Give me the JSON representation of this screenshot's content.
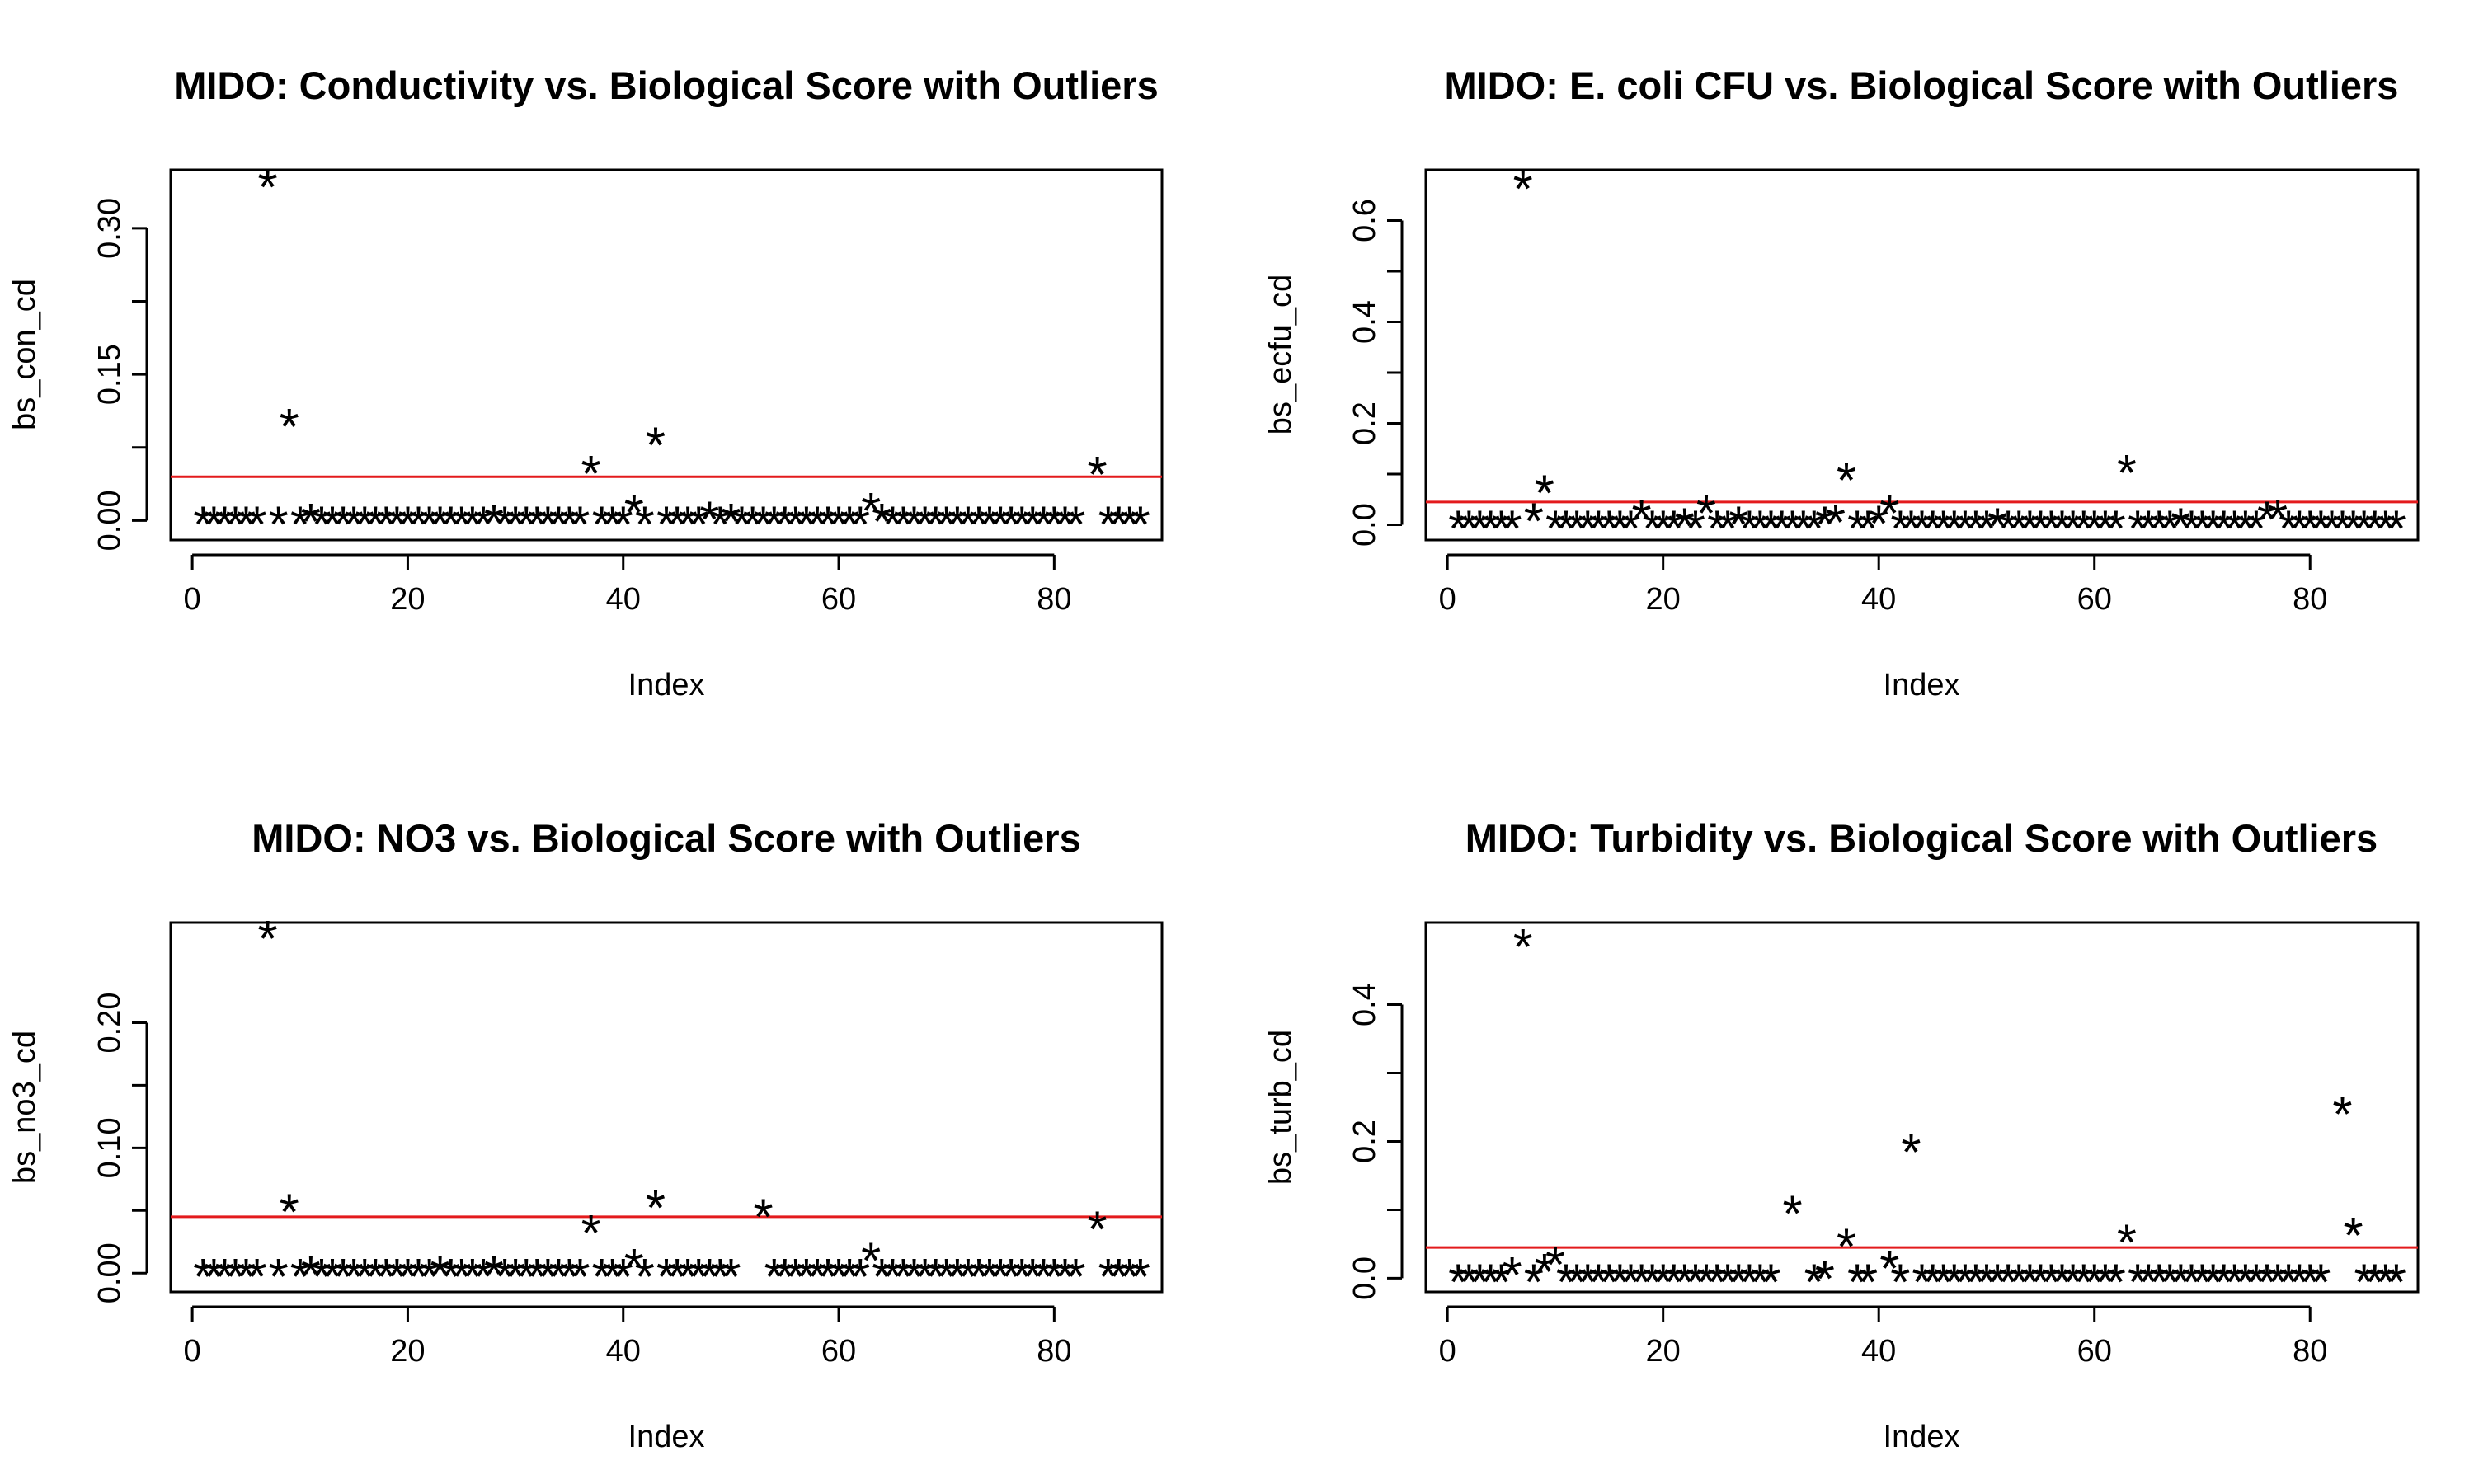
{
  "reference_line_color": "#e31a1c",
  "point_symbol": "*",
  "chart_data": [
    {
      "type": "scatter",
      "title": "MIDO: Conductivity vs. Biological Score with Outliers",
      "xlabel": "Index",
      "ylabel": "bs_con_cd",
      "xlim": [
        -2,
        90
      ],
      "ylim": [
        -0.02,
        0.36
      ],
      "xticks": [
        0,
        20,
        40,
        60,
        80
      ],
      "xtick_labels": [
        "0",
        "20",
        "40",
        "60",
        "80"
      ],
      "yticks": [
        0.0,
        0.15,
        0.3
      ],
      "ytick_labels": [
        "0.00",
        "0.15",
        "0.30"
      ],
      "reference_line": 0.045,
      "points": [
        [
          1,
          0.0
        ],
        [
          2,
          0.0
        ],
        [
          3,
          0.0
        ],
        [
          4,
          0.0
        ],
        [
          5,
          0.0
        ],
        [
          6,
          0.0
        ],
        [
          7,
          0.346
        ],
        [
          8,
          0.0
        ],
        [
          9,
          0.1
        ],
        [
          10,
          0.0
        ],
        [
          11,
          0.003
        ],
        [
          12,
          0.0
        ],
        [
          13,
          0.0
        ],
        [
          14,
          0.0
        ],
        [
          15,
          0.0
        ],
        [
          16,
          0.0
        ],
        [
          17,
          0.0
        ],
        [
          18,
          0.0
        ],
        [
          19,
          0.0
        ],
        [
          20,
          0.0
        ],
        [
          21,
          0.0
        ],
        [
          22,
          0.0
        ],
        [
          23,
          0.0
        ],
        [
          24,
          0.0
        ],
        [
          25,
          0.0
        ],
        [
          26,
          0.0
        ],
        [
          27,
          0.0
        ],
        [
          28,
          0.002
        ],
        [
          29,
          0.0
        ],
        [
          30,
          0.0
        ],
        [
          31,
          0.0
        ],
        [
          32,
          0.0
        ],
        [
          33,
          0.0
        ],
        [
          34,
          0.0
        ],
        [
          35,
          0.0
        ],
        [
          36,
          0.0
        ],
        [
          37,
          0.052
        ],
        [
          38,
          0.0
        ],
        [
          39,
          0.0
        ],
        [
          40,
          0.0
        ],
        [
          41,
          0.012
        ],
        [
          42,
          0.0
        ],
        [
          43,
          0.081
        ],
        [
          44,
          0.0
        ],
        [
          45,
          0.0
        ],
        [
          46,
          0.0
        ],
        [
          47,
          0.0
        ],
        [
          48,
          0.005
        ],
        [
          49,
          0.0
        ],
        [
          50,
          0.003
        ],
        [
          51,
          0.0
        ],
        [
          52,
          0.0
        ],
        [
          53,
          0.0
        ],
        [
          54,
          0.0
        ],
        [
          55,
          0.0
        ],
        [
          56,
          0.0
        ],
        [
          57,
          0.0
        ],
        [
          58,
          0.0
        ],
        [
          59,
          0.0
        ],
        [
          60,
          0.0
        ],
        [
          61,
          0.0
        ],
        [
          62,
          0.0
        ],
        [
          63,
          0.014
        ],
        [
          64,
          0.003
        ],
        [
          65,
          0.0
        ],
        [
          66,
          0.0
        ],
        [
          67,
          0.0
        ],
        [
          68,
          0.0
        ],
        [
          69,
          0.0
        ],
        [
          70,
          0.0
        ],
        [
          71,
          0.0
        ],
        [
          72,
          0.0
        ],
        [
          73,
          0.0
        ],
        [
          74,
          0.0
        ],
        [
          75,
          0.0
        ],
        [
          76,
          0.0
        ],
        [
          77,
          0.0
        ],
        [
          78,
          0.0
        ],
        [
          79,
          0.0
        ],
        [
          80,
          0.0
        ],
        [
          81,
          0.0
        ],
        [
          82,
          0.0
        ],
        [
          84,
          0.051
        ],
        [
          85,
          0.0
        ],
        [
          86,
          0.0
        ],
        [
          87,
          0.0
        ],
        [
          88,
          0.0
        ]
      ]
    },
    {
      "type": "scatter",
      "title": "MIDO: E. coli CFU vs. Biological Score with Outliers",
      "xlabel": "Index",
      "ylabel": "bs_ecfu_cd",
      "xlim": [
        -2,
        90
      ],
      "ylim": [
        -0.03,
        0.7
      ],
      "xticks": [
        0,
        20,
        40,
        60,
        80
      ],
      "xtick_labels": [
        "0",
        "20",
        "40",
        "60",
        "80"
      ],
      "yticks": [
        0.0,
        0.2,
        0.4,
        0.6
      ],
      "ytick_labels": [
        "0.0",
        "0.2",
        "0.4",
        "0.6"
      ],
      "reference_line": 0.045,
      "points": [
        [
          1,
          0.0
        ],
        [
          2,
          0.0
        ],
        [
          3,
          0.0
        ],
        [
          4,
          0.0
        ],
        [
          5,
          0.0
        ],
        [
          6,
          0.0
        ],
        [
          7,
          0.67
        ],
        [
          8,
          0.015
        ],
        [
          9,
          0.07
        ],
        [
          10,
          0.0
        ],
        [
          11,
          0.0
        ],
        [
          12,
          0.0
        ],
        [
          13,
          0.0
        ],
        [
          14,
          0.0
        ],
        [
          15,
          0.0
        ],
        [
          16,
          0.0
        ],
        [
          17,
          0.0
        ],
        [
          18,
          0.02
        ],
        [
          19,
          0.0
        ],
        [
          20,
          0.0
        ],
        [
          21,
          0.0
        ],
        [
          22,
          0.005
        ],
        [
          23,
          0.0
        ],
        [
          24,
          0.03
        ],
        [
          25,
          0.0
        ],
        [
          26,
          0.0
        ],
        [
          27,
          0.008
        ],
        [
          28,
          0.0
        ],
        [
          29,
          0.0
        ],
        [
          30,
          0.0
        ],
        [
          31,
          0.0
        ],
        [
          32,
          0.0
        ],
        [
          33,
          0.0
        ],
        [
          34,
          0.0
        ],
        [
          35,
          0.008
        ],
        [
          36,
          0.012
        ],
        [
          37,
          0.095
        ],
        [
          38,
          0.0
        ],
        [
          39,
          0.0
        ],
        [
          40,
          0.01
        ],
        [
          41,
          0.03
        ],
        [
          42,
          0.0
        ],
        [
          43,
          0.0
        ],
        [
          44,
          0.0
        ],
        [
          45,
          0.0
        ],
        [
          46,
          0.0
        ],
        [
          47,
          0.0
        ],
        [
          48,
          0.0
        ],
        [
          49,
          0.0
        ],
        [
          50,
          0.0
        ],
        [
          51,
          0.005
        ],
        [
          52,
          0.0
        ],
        [
          53,
          0.0
        ],
        [
          54,
          0.0
        ],
        [
          55,
          0.0
        ],
        [
          56,
          0.0
        ],
        [
          57,
          0.0
        ],
        [
          58,
          0.0
        ],
        [
          59,
          0.0
        ],
        [
          60,
          0.0
        ],
        [
          61,
          0.0
        ],
        [
          62,
          0.0
        ],
        [
          63,
          0.11
        ],
        [
          64,
          0.0
        ],
        [
          65,
          0.0
        ],
        [
          66,
          0.0
        ],
        [
          67,
          0.0
        ],
        [
          68,
          0.005
        ],
        [
          69,
          0.0
        ],
        [
          70,
          0.0
        ],
        [
          71,
          0.0
        ],
        [
          72,
          0.0
        ],
        [
          73,
          0.0
        ],
        [
          74,
          0.0
        ],
        [
          75,
          0.0
        ],
        [
          76,
          0.018
        ],
        [
          77,
          0.02
        ],
        [
          78,
          0.0
        ],
        [
          79,
          0.0
        ],
        [
          80,
          0.0
        ],
        [
          81,
          0.0
        ],
        [
          82,
          0.0
        ],
        [
          83,
          0.0
        ],
        [
          84,
          0.0
        ],
        [
          85,
          0.0
        ],
        [
          86,
          0.0
        ],
        [
          87,
          0.0
        ],
        [
          88,
          0.0
        ]
      ]
    },
    {
      "type": "scatter",
      "title": "MIDO: NO3 vs. Biological Score with Outliers",
      "xlabel": "Index",
      "ylabel": "bs_no3_cd",
      "xlim": [
        -2,
        90
      ],
      "ylim": [
        -0.015,
        0.28
      ],
      "xticks": [
        0,
        20,
        40,
        60,
        80
      ],
      "xtick_labels": [
        "0",
        "20",
        "40",
        "60",
        "80"
      ],
      "yticks": [
        0.0,
        0.1,
        0.2
      ],
      "ytick_labels": [
        "0.00",
        "0.10",
        "0.20"
      ],
      "reference_line": 0.045,
      "points": [
        [
          1,
          0.0
        ],
        [
          2,
          0.0
        ],
        [
          3,
          0.0
        ],
        [
          4,
          0.0
        ],
        [
          5,
          0.0
        ],
        [
          6,
          0.0
        ],
        [
          7,
          0.27
        ],
        [
          8,
          0.0
        ],
        [
          9,
          0.052
        ],
        [
          10,
          0.0
        ],
        [
          11,
          0.002
        ],
        [
          12,
          0.0
        ],
        [
          13,
          0.0
        ],
        [
          14,
          0.0
        ],
        [
          15,
          0.0
        ],
        [
          16,
          0.0
        ],
        [
          17,
          0.0
        ],
        [
          18,
          0.0
        ],
        [
          19,
          0.0
        ],
        [
          20,
          0.0
        ],
        [
          21,
          0.0
        ],
        [
          22,
          0.0
        ],
        [
          23,
          0.002
        ],
        [
          24,
          0.0
        ],
        [
          25,
          0.0
        ],
        [
          26,
          0.0
        ],
        [
          27,
          0.0
        ],
        [
          28,
          0.002
        ],
        [
          29,
          0.0
        ],
        [
          30,
          0.0
        ],
        [
          31,
          0.0
        ],
        [
          32,
          0.0
        ],
        [
          33,
          0.0
        ],
        [
          34,
          0.0
        ],
        [
          35,
          0.0
        ],
        [
          36,
          0.0
        ],
        [
          37,
          0.035
        ],
        [
          38,
          0.0
        ],
        [
          39,
          0.0
        ],
        [
          40,
          0.0
        ],
        [
          41,
          0.008
        ],
        [
          42,
          0.0
        ],
        [
          43,
          0.055
        ],
        [
          44,
          0.0
        ],
        [
          45,
          0.0
        ],
        [
          46,
          0.0
        ],
        [
          47,
          0.0
        ],
        [
          48,
          0.0
        ],
        [
          49,
          0.0
        ],
        [
          50,
          0.0
        ],
        [
          53,
          0.048
        ],
        [
          54,
          0.0
        ],
        [
          55,
          0.0
        ],
        [
          56,
          0.0
        ],
        [
          57,
          0.0
        ],
        [
          58,
          0.0
        ],
        [
          59,
          0.0
        ],
        [
          60,
          0.0
        ],
        [
          61,
          0.0
        ],
        [
          62,
          0.0
        ],
        [
          63,
          0.013
        ],
        [
          64,
          0.0
        ],
        [
          65,
          0.0
        ],
        [
          66,
          0.0
        ],
        [
          67,
          0.0
        ],
        [
          68,
          0.0
        ],
        [
          69,
          0.0
        ],
        [
          70,
          0.0
        ],
        [
          71,
          0.0
        ],
        [
          72,
          0.0
        ],
        [
          73,
          0.0
        ],
        [
          74,
          0.0
        ],
        [
          75,
          0.0
        ],
        [
          76,
          0.0
        ],
        [
          77,
          0.0
        ],
        [
          78,
          0.0
        ],
        [
          79,
          0.0
        ],
        [
          80,
          0.0
        ],
        [
          81,
          0.0
        ],
        [
          82,
          0.0
        ],
        [
          84,
          0.038
        ],
        [
          85,
          0.0
        ],
        [
          86,
          0.0
        ],
        [
          87,
          0.0
        ],
        [
          88,
          0.0
        ]
      ]
    },
    {
      "type": "scatter",
      "title": "MIDO: Turbidity vs. Biological Score with Outliers",
      "xlabel": "Index",
      "ylabel": "bs_turb_cd",
      "xlim": [
        -2,
        90
      ],
      "ylim": [
        -0.02,
        0.52
      ],
      "xticks": [
        0,
        20,
        40,
        60,
        80
      ],
      "xtick_labels": [
        "0",
        "20",
        "40",
        "60",
        "80"
      ],
      "yticks": [
        0.0,
        0.2,
        0.4
      ],
      "ytick_labels": [
        "0.0",
        "0.2",
        "0.4"
      ],
      "reference_line": 0.045,
      "points": [
        [
          1,
          0.0
        ],
        [
          2,
          0.0
        ],
        [
          3,
          0.0
        ],
        [
          4,
          0.0
        ],
        [
          5,
          0.0
        ],
        [
          6,
          0.01
        ],
        [
          7,
          0.49
        ],
        [
          8,
          0.0
        ],
        [
          9,
          0.015
        ],
        [
          10,
          0.025
        ],
        [
          11,
          0.0
        ],
        [
          12,
          0.0
        ],
        [
          13,
          0.0
        ],
        [
          14,
          0.0
        ],
        [
          15,
          0.0
        ],
        [
          16,
          0.0
        ],
        [
          17,
          0.0
        ],
        [
          18,
          0.0
        ],
        [
          19,
          0.0
        ],
        [
          20,
          0.0
        ],
        [
          21,
          0.0
        ],
        [
          22,
          0.0
        ],
        [
          23,
          0.0
        ],
        [
          24,
          0.0
        ],
        [
          25,
          0.0
        ],
        [
          26,
          0.0
        ],
        [
          27,
          0.0
        ],
        [
          28,
          0.0
        ],
        [
          29,
          0.0
        ],
        [
          30,
          0.0
        ],
        [
          32,
          0.1
        ],
        [
          34,
          0.0
        ],
        [
          35,
          0.005
        ],
        [
          37,
          0.052
        ],
        [
          38,
          0.0
        ],
        [
          39,
          0.0
        ],
        [
          41,
          0.02
        ],
        [
          42,
          0.0
        ],
        [
          43,
          0.19
        ],
        [
          44,
          0.0
        ],
        [
          45,
          0.0
        ],
        [
          46,
          0.0
        ],
        [
          47,
          0.0
        ],
        [
          48,
          0.0
        ],
        [
          49,
          0.0
        ],
        [
          50,
          0.0
        ],
        [
          51,
          0.0
        ],
        [
          52,
          0.0
        ],
        [
          53,
          0.0
        ],
        [
          54,
          0.0
        ],
        [
          55,
          0.0
        ],
        [
          56,
          0.0
        ],
        [
          57,
          0.0
        ],
        [
          58,
          0.0
        ],
        [
          59,
          0.0
        ],
        [
          60,
          0.0
        ],
        [
          61,
          0.0
        ],
        [
          62,
          0.0
        ],
        [
          63,
          0.058
        ],
        [
          64,
          0.0
        ],
        [
          65,
          0.0
        ],
        [
          66,
          0.0
        ],
        [
          67,
          0.0
        ],
        [
          68,
          0.0
        ],
        [
          69,
          0.0
        ],
        [
          70,
          0.0
        ],
        [
          71,
          0.0
        ],
        [
          72,
          0.0
        ],
        [
          73,
          0.0
        ],
        [
          74,
          0.0
        ],
        [
          75,
          0.0
        ],
        [
          76,
          0.0
        ],
        [
          77,
          0.0
        ],
        [
          78,
          0.0
        ],
        [
          79,
          0.0
        ],
        [
          80,
          0.0
        ],
        [
          81,
          0.0
        ],
        [
          83,
          0.245
        ],
        [
          84,
          0.068
        ],
        [
          85,
          0.0
        ],
        [
          86,
          0.0
        ],
        [
          87,
          0.0
        ],
        [
          88,
          0.0
        ]
      ]
    }
  ]
}
